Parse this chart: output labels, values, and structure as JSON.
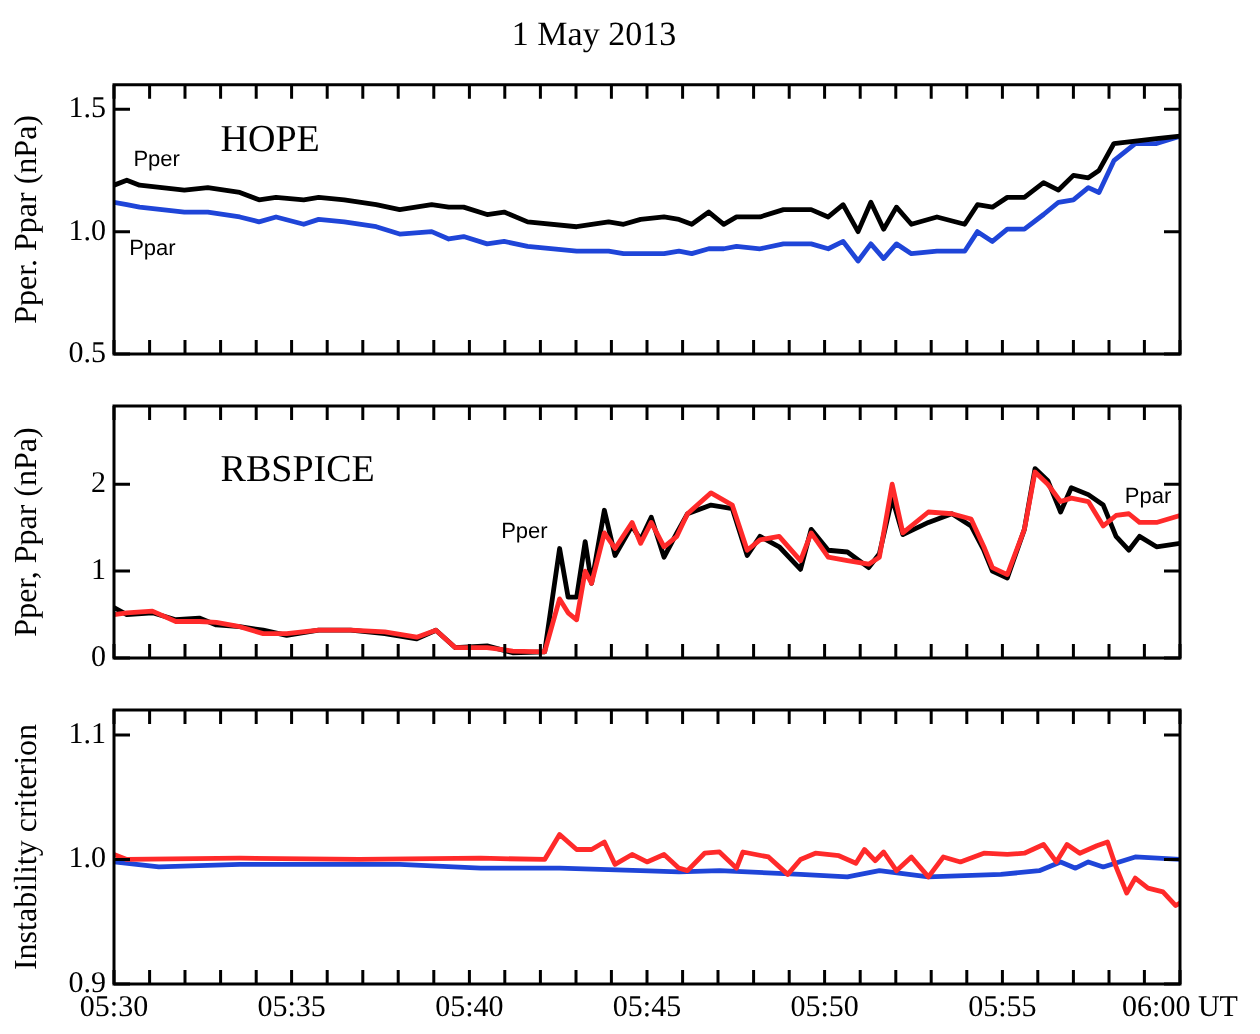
{
  "chart_data": [
    {
      "type": "line",
      "title": "1 May 2013",
      "ylabel": "Pper. Ppar (nPa)",
      "annotations": [
        "HOPE",
        "Pper",
        "Ppar"
      ],
      "x": [
        5.5,
        5.506,
        5.512,
        5.533,
        5.544,
        5.559,
        5.568,
        5.576,
        5.589,
        5.596,
        5.608,
        5.623,
        5.634,
        5.649,
        5.657,
        5.664,
        5.675,
        5.683,
        5.694,
        5.717,
        5.732,
        5.739,
        5.747,
        5.758,
        5.765,
        5.771,
        5.779,
        5.786,
        5.792,
        5.803,
        5.814,
        5.822,
        5.827,
        5.835,
        5.842,
        5.849,
        5.855,
        5.861,
        5.867,
        5.874,
        5.886,
        5.899,
        5.905,
        5.912,
        5.919,
        5.927,
        5.936,
        5.943,
        5.95,
        5.957,
        5.962,
        5.969,
        5.979,
        5.989,
        6.0
      ],
      "series": [
        {
          "color": "#000000",
          "values": [
            1.19,
            1.21,
            1.19,
            1.17,
            1.18,
            1.16,
            1.13,
            1.14,
            1.13,
            1.14,
            1.13,
            1.11,
            1.09,
            1.11,
            1.1,
            1.1,
            1.07,
            1.08,
            1.04,
            1.02,
            1.04,
            1.03,
            1.05,
            1.06,
            1.05,
            1.03,
            1.08,
            1.03,
            1.06,
            1.06,
            1.09,
            1.09,
            1.09,
            1.06,
            1.11,
            1.0,
            1.12,
            1.01,
            1.1,
            1.03,
            1.06,
            1.03,
            1.11,
            1.1,
            1.14,
            1.14,
            1.2,
            1.17,
            1.23,
            1.22,
            1.25,
            1.36,
            1.37,
            1.38,
            1.39
          ]
        },
        {
          "color": "#1f45d8",
          "values": [
            1.12,
            1.11,
            1.1,
            1.08,
            1.08,
            1.06,
            1.04,
            1.06,
            1.03,
            1.05,
            1.04,
            1.02,
            0.99,
            1.0,
            0.97,
            0.98,
            0.95,
            0.96,
            0.94,
            0.92,
            0.92,
            0.91,
            0.91,
            0.91,
            0.92,
            0.91,
            0.93,
            0.93,
            0.94,
            0.93,
            0.95,
            0.95,
            0.95,
            0.93,
            0.96,
            0.88,
            0.95,
            0.89,
            0.95,
            0.91,
            0.92,
            0.92,
            1.0,
            0.96,
            1.01,
            1.01,
            1.07,
            1.12,
            1.13,
            1.18,
            1.16,
            1.29,
            1.36,
            1.36,
            1.39
          ]
        }
      ],
      "xlim": [
        5.5,
        6.0
      ],
      "xticks": [
        {
          "value": 5.5,
          "label": null
        },
        {
          "value": 5.5167,
          "label": null
        },
        {
          "value": 5.5333,
          "label": null
        },
        {
          "value": 5.55,
          "label": null
        },
        {
          "value": 5.5667,
          "label": null
        },
        {
          "value": 5.5833,
          "label": null
        },
        {
          "value": 5.6,
          "label": null
        },
        {
          "value": 5.6167,
          "label": null
        },
        {
          "value": 5.6333,
          "label": null
        },
        {
          "value": 5.65,
          "label": null
        },
        {
          "value": 5.6667,
          "label": null
        },
        {
          "value": 5.6833,
          "label": null
        },
        {
          "value": 5.7,
          "label": null
        },
        {
          "value": 5.7167,
          "label": null
        },
        {
          "value": 5.7333,
          "label": null
        },
        {
          "value": 5.75,
          "label": null
        },
        {
          "value": 5.7667,
          "label": null
        },
        {
          "value": 5.7833,
          "label": null
        },
        {
          "value": 5.8,
          "label": null
        },
        {
          "value": 5.8167,
          "label": null
        },
        {
          "value": 5.8333,
          "label": null
        },
        {
          "value": 5.85,
          "label": null
        },
        {
          "value": 5.8667,
          "label": null
        },
        {
          "value": 5.8833,
          "label": null
        },
        {
          "value": 5.9,
          "label": null
        },
        {
          "value": 5.9167,
          "label": null
        },
        {
          "value": 5.9333,
          "label": null
        },
        {
          "value": 5.95,
          "label": null
        },
        {
          "value": 5.9667,
          "label": null
        },
        {
          "value": 5.9833,
          "label": null
        },
        {
          "value": 6.0,
          "label": null
        }
      ],
      "ylim": [
        0.5,
        1.6
      ],
      "yticks": [
        0.5,
        {
          "value": 1.0,
          "label": "1.0"
        },
        1.5
      ],
      "tick_labels": "y"
    },
    {
      "type": "line",
      "ylabel": "Pper, Ppar (nPa)",
      "annotations": [
        "RBSPICE",
        "Pper",
        "Ppar"
      ],
      "x": [
        5.5,
        5.506,
        5.518,
        5.529,
        5.54,
        5.548,
        5.559,
        5.57,
        5.581,
        5.596,
        5.611,
        5.627,
        5.642,
        5.651,
        5.66,
        5.675,
        5.687,
        5.702,
        5.709,
        5.713,
        5.717,
        5.721,
        5.724,
        5.73,
        5.735,
        5.743,
        5.747,
        5.752,
        5.758,
        5.764,
        5.769,
        5.78,
        5.79,
        5.797,
        5.803,
        5.812,
        5.822,
        5.827,
        5.835,
        5.844,
        5.854,
        5.859,
        5.865,
        5.87,
        5.882,
        5.893,
        5.902,
        5.908,
        5.912,
        5.919,
        5.927,
        5.932,
        5.938,
        5.944,
        5.949,
        5.957,
        5.964,
        5.97,
        5.976,
        5.981,
        5.989,
        6.0
      ],
      "series": [
        {
          "color": "#ff2a2a",
          "values": [
            0.5,
            0.52,
            0.54,
            0.42,
            0.42,
            0.41,
            0.36,
            0.28,
            0.28,
            0.32,
            0.32,
            0.3,
            0.24,
            0.32,
            0.12,
            0.12,
            0.08,
            0.07,
            0.68,
            0.52,
            0.44,
            1.0,
            0.86,
            1.44,
            1.26,
            1.56,
            1.32,
            1.56,
            1.28,
            1.4,
            1.66,
            1.9,
            1.76,
            1.24,
            1.36,
            1.4,
            1.12,
            1.44,
            1.16,
            1.12,
            1.08,
            1.16,
            2.0,
            1.44,
            1.68,
            1.66,
            1.6,
            1.28,
            1.04,
            0.96,
            1.48,
            2.14,
            2.0,
            1.8,
            1.84,
            1.8,
            1.52,
            1.64,
            1.66,
            1.56,
            1.56,
            1.64
          ]
        },
        {
          "color": "#000000",
          "values": [
            0.58,
            0.5,
            0.52,
            0.44,
            0.46,
            0.38,
            0.36,
            0.32,
            0.26,
            0.32,
            0.32,
            0.28,
            0.22,
            0.32,
            0.12,
            0.14,
            0.06,
            0.07,
            1.26,
            0.7,
            0.7,
            1.34,
            0.86,
            1.7,
            1.18,
            1.52,
            1.36,
            1.62,
            1.16,
            1.44,
            1.66,
            1.76,
            1.72,
            1.18,
            1.4,
            1.28,
            1.02,
            1.48,
            1.24,
            1.22,
            1.04,
            1.2,
            1.84,
            1.42,
            1.56,
            1.66,
            1.52,
            1.24,
            1.0,
            0.92,
            1.48,
            2.18,
            2.04,
            1.68,
            1.96,
            1.88,
            1.76,
            1.4,
            1.24,
            1.4,
            1.28,
            1.32
          ]
        }
      ],
      "xlim": [
        5.5,
        6.0
      ],
      "xticks": [
        {
          "value": 5.5,
          "label": null
        },
        {
          "value": 5.5167,
          "label": null
        },
        {
          "value": 5.5333,
          "label": null
        },
        {
          "value": 5.55,
          "label": null
        },
        {
          "value": 5.5667,
          "label": null
        },
        {
          "value": 5.5833,
          "label": null
        },
        {
          "value": 5.6,
          "label": null
        },
        {
          "value": 5.6167,
          "label": null
        },
        {
          "value": 5.6333,
          "label": null
        },
        {
          "value": 5.65,
          "label": null
        },
        {
          "value": 5.6667,
          "label": null
        },
        {
          "value": 5.6833,
          "label": null
        },
        {
          "value": 5.7,
          "label": null
        },
        {
          "value": 5.7167,
          "label": null
        },
        {
          "value": 5.7333,
          "label": null
        },
        {
          "value": 5.75,
          "label": null
        },
        {
          "value": 5.7667,
          "label": null
        },
        {
          "value": 5.7833,
          "label": null
        },
        {
          "value": 5.8,
          "label": null
        },
        {
          "value": 5.8167,
          "label": null
        },
        {
          "value": 5.8333,
          "label": null
        },
        {
          "value": 5.85,
          "label": null
        },
        {
          "value": 5.8667,
          "label": null
        },
        {
          "value": 5.8833,
          "label": null
        },
        {
          "value": 5.9,
          "label": null
        },
        {
          "value": 5.9167,
          "label": null
        },
        {
          "value": 5.9333,
          "label": null
        },
        {
          "value": 5.95,
          "label": null
        },
        {
          "value": 5.9667,
          "label": null
        },
        {
          "value": 5.9833,
          "label": null
        },
        {
          "value": 6.0,
          "label": null
        }
      ],
      "ylim": [
        0,
        2.9
      ],
      "yticks": [
        0,
        1,
        2
      ],
      "tick_labels": "y"
    },
    {
      "type": "line",
      "ylabel": "Instability criterion",
      "series": [
        {
          "color": "#ff2a2a",
          "x": [
            5.5,
            5.506,
            5.559,
            5.615,
            5.672,
            5.702,
            5.709,
            5.717,
            5.724,
            5.73,
            5.735,
            5.743,
            5.75,
            5.758,
            5.765,
            5.769,
            5.777,
            5.784,
            5.792,
            5.795,
            5.807,
            5.816,
            5.822,
            5.829,
            5.84,
            5.848,
            5.852,
            5.857,
            5.861,
            5.867,
            5.874,
            5.882,
            5.889,
            5.897,
            5.908,
            5.919,
            5.927,
            5.936,
            5.942,
            5.947,
            5.953,
            5.961,
            5.966,
            5.97,
            5.975,
            5.979,
            5.985,
            5.992,
            5.998,
            6.0
          ],
          "values": [
            1.004,
            1.0,
            1.001,
            1.0,
            1.001,
            1.0,
            1.02,
            1.008,
            1.008,
            1.014,
            0.996,
            1.004,
            0.998,
            1.004,
            0.993,
            0.991,
            1.005,
            1.006,
            0.993,
            1.006,
            1.002,
            0.988,
            1.0,
            1.005,
            1.003,
            0.997,
            1.008,
            0.999,
            1.006,
            0.991,
            1.002,
            0.986,
            1.002,
            0.998,
            1.005,
            1.004,
            1.005,
            1.012,
            0.998,
            1.012,
            1.005,
            1.011,
            1.014,
            0.994,
            0.973,
            0.985,
            0.977,
            0.974,
            0.963,
            0.965
          ]
        },
        {
          "color": "#1f45d8",
          "x": [
            5.5,
            5.521,
            5.559,
            5.634,
            5.672,
            5.709,
            5.747,
            5.765,
            5.784,
            5.822,
            5.844,
            5.859,
            5.882,
            5.916,
            5.934,
            5.944,
            5.951,
            5.957,
            5.964,
            5.979,
            6.0
          ],
          "values": [
            0.998,
            0.994,
            0.996,
            0.996,
            0.993,
            0.993,
            0.991,
            0.99,
            0.991,
            0.988,
            0.986,
            0.991,
            0.986,
            0.988,
            0.991,
            0.998,
            0.993,
            0.998,
            0.994,
            1.002,
            1.0
          ]
        }
      ],
      "xlim": [
        5.5,
        6.0
      ],
      "xticks": [
        {
          "value": 5.5,
          "label": "05:30"
        },
        {
          "value": 5.5167,
          "label": null
        },
        {
          "value": 5.5333,
          "label": null
        },
        {
          "value": 5.55,
          "label": null
        },
        {
          "value": 5.5667,
          "label": null
        },
        {
          "value": 5.5833,
          "label": "05:35"
        },
        {
          "value": 5.6,
          "label": null
        },
        {
          "value": 5.6167,
          "label": null
        },
        {
          "value": 5.6333,
          "label": null
        },
        {
          "value": 5.65,
          "label": null
        },
        {
          "value": 5.6667,
          "label": "05:40"
        },
        {
          "value": 5.6833,
          "label": null
        },
        {
          "value": 5.7,
          "label": null
        },
        {
          "value": 5.7167,
          "label": null
        },
        {
          "value": 5.7333,
          "label": null
        },
        {
          "value": 5.75,
          "label": "05:45"
        },
        {
          "value": 5.7667,
          "label": null
        },
        {
          "value": 5.7833,
          "label": null
        },
        {
          "value": 5.8,
          "label": null
        },
        {
          "value": 5.8167,
          "label": null
        },
        {
          "value": 5.8333,
          "label": "05:50"
        },
        {
          "value": 5.85,
          "label": null
        },
        {
          "value": 5.8667,
          "label": null
        },
        {
          "value": 5.8833,
          "label": null
        },
        {
          "value": 5.9,
          "label": null
        },
        {
          "value": 5.9167,
          "label": "05:55"
        },
        {
          "value": 5.9333,
          "label": null
        },
        {
          "value": 5.95,
          "label": null
        },
        {
          "value": 5.9667,
          "label": null
        },
        {
          "value": 5.9833,
          "label": null
        },
        {
          "value": 6.0,
          "label": "06:00 UT"
        }
      ],
      "ylim": [
        0.9,
        1.12
      ],
      "yticks": [
        0.9,
        {
          "value": 1.0,
          "label": "1.0"
        },
        1.1
      ]
    }
  ]
}
